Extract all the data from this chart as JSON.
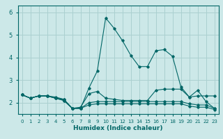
{
  "xlabel": "Humidex (Indice chaleur)",
  "bg_color": "#cce8e8",
  "grid_color": "#aad0d0",
  "line_color": "#006666",
  "xlim": [
    -0.5,
    23.5
  ],
  "ylim": [
    1.5,
    6.3
  ],
  "yticks": [
    2,
    3,
    4,
    5,
    6
  ],
  "xticks": [
    0,
    1,
    2,
    3,
    4,
    5,
    6,
    7,
    8,
    9,
    10,
    11,
    12,
    13,
    14,
    15,
    16,
    17,
    18,
    19,
    20,
    21,
    22,
    23
  ],
  "lines": [
    {
      "x": [
        0,
        1,
        2,
        3,
        4,
        5,
        6,
        7,
        8,
        9,
        10,
        11,
        12,
        13,
        14,
        15,
        16,
        17,
        18,
        19,
        20,
        21,
        22,
        23
      ],
      "y": [
        2.35,
        2.2,
        2.3,
        2.3,
        2.25,
        2.15,
        1.75,
        1.75,
        2.65,
        3.4,
        5.75,
        5.3,
        4.75,
        4.1,
        3.6,
        3.6,
        4.3,
        4.35,
        4.05,
        2.7,
        2.25,
        2.55,
        2.05,
        1.75
      ]
    },
    {
      "x": [
        0,
        1,
        2,
        3,
        4,
        5,
        6,
        7,
        8,
        9,
        10,
        11,
        12,
        13,
        14,
        15,
        16,
        17,
        18,
        19,
        20,
        21,
        22,
        23
      ],
      "y": [
        2.35,
        2.2,
        2.3,
        2.3,
        2.2,
        2.15,
        1.75,
        1.8,
        2.4,
        2.5,
        2.2,
        2.15,
        2.1,
        2.1,
        2.1,
        2.1,
        2.55,
        2.6,
        2.6,
        2.6,
        2.25,
        2.3,
        2.3,
        2.3
      ]
    },
    {
      "x": [
        0,
        1,
        2,
        3,
        4,
        5,
        6,
        7,
        8,
        9,
        10,
        11,
        12,
        13,
        14,
        15,
        16,
        17,
        18,
        19,
        20,
        21,
        22,
        23
      ],
      "y": [
        2.35,
        2.2,
        2.3,
        2.3,
        2.2,
        2.1,
        1.75,
        1.75,
        2.0,
        2.05,
        2.05,
        2.05,
        2.05,
        2.05,
        2.05,
        2.05,
        2.05,
        2.05,
        2.05,
        2.05,
        1.95,
        1.9,
        1.9,
        1.75
      ]
    },
    {
      "x": [
        0,
        1,
        2,
        3,
        4,
        5,
        6,
        7,
        8,
        9,
        10,
        11,
        12,
        13,
        14,
        15,
        16,
        17,
        18,
        19,
        20,
        21,
        22,
        23
      ],
      "y": [
        2.35,
        2.2,
        2.3,
        2.3,
        2.2,
        2.1,
        1.75,
        1.75,
        1.9,
        1.95,
        1.95,
        1.95,
        1.95,
        1.95,
        1.95,
        1.95,
        1.95,
        1.95,
        1.95,
        1.95,
        1.85,
        1.8,
        1.8,
        1.7
      ]
    }
  ]
}
